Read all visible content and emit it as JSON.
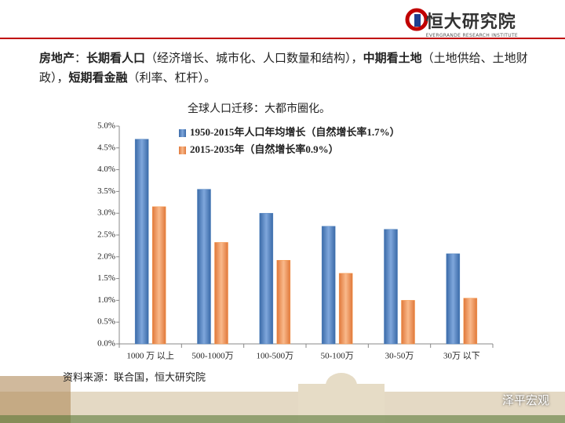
{
  "header": {
    "logo_text": "恒大研究院",
    "logo_subtext": "EVERGRANDE RESEARCH INSTITUTE"
  },
  "intro": [
    {
      "text": "房地产",
      "bold": true
    },
    {
      "text": "：",
      "bold": false
    },
    {
      "text": "长期看人口",
      "bold": true
    },
    {
      "text": "（经济增长、城市化、人口数量和结构），",
      "bold": false
    },
    {
      "text": "中期看土地",
      "bold": true
    },
    {
      "text": "（土地供给、土地财政），",
      "bold": false
    },
    {
      "text": "短期看金融",
      "bold": true
    },
    {
      "text": "（利率、杠杆）。",
      "bold": false
    }
  ],
  "chart_data": {
    "type": "bar",
    "title": "全球人口迁移：大都市圈化。",
    "categories": [
      "1000 万 以上",
      "500-1000万",
      "100-500万",
      "50-100万",
      "30-50万",
      "30万 以下"
    ],
    "series": [
      {
        "name": "1950-2015年人口年均增长（自然增长率1.7%）",
        "color": "#4f81bd",
        "values": [
          4.7,
          3.55,
          3.0,
          2.7,
          2.63,
          2.07
        ]
      },
      {
        "name": "2015-2035年（自然增长率0.9%）",
        "color": "#f79646",
        "values": [
          3.15,
          2.33,
          1.92,
          1.62,
          1.0,
          1.05
        ]
      }
    ],
    "ylim": [
      0,
      5
    ],
    "yticks": [
      {
        "value": 0,
        "label": "0.0%"
      },
      {
        "value": 0.5,
        "label": "0.5%"
      },
      {
        "value": 1,
        "label": "1.0%"
      },
      {
        "value": 1.5,
        "label": "1.5%"
      },
      {
        "value": 2,
        "label": "2.0%"
      },
      {
        "value": 2.5,
        "label": "2.5%"
      },
      {
        "value": 3,
        "label": "3.0%"
      },
      {
        "value": 3.5,
        "label": "3.5%"
      },
      {
        "value": 4,
        "label": "4.0%"
      },
      {
        "value": 4.5,
        "label": "4.5%"
      },
      {
        "value": 5,
        "label": "5.0%"
      }
    ],
    "grid": false,
    "legend": "top-left"
  },
  "source": "资料来源：联合国，恒大研究院",
  "watermark": "泽平宏观"
}
